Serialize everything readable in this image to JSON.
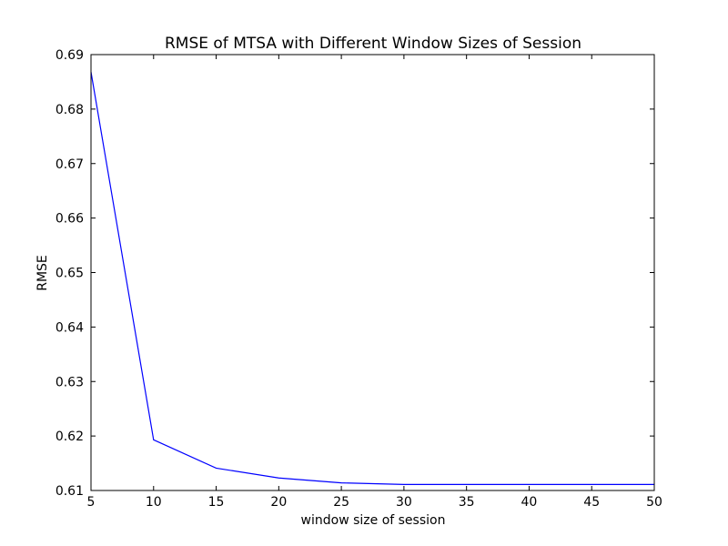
{
  "chart_data": {
    "type": "line",
    "title": "RMSE of MTSA with Different Window Sizes of Session",
    "xlabel": "window size of session",
    "ylabel": "RMSE",
    "xlim": [
      5,
      50
    ],
    "ylim": [
      0.61,
      0.69
    ],
    "xticks": [
      5,
      10,
      15,
      20,
      25,
      30,
      35,
      40,
      45,
      50
    ],
    "yticks": [
      0.61,
      0.62,
      0.63,
      0.64,
      0.65,
      0.66,
      0.67,
      0.68,
      0.69
    ],
    "grid": false,
    "series": [
      {
        "color": "#0000ff",
        "x": [
          5,
          10,
          15,
          20,
          25,
          30,
          35,
          40,
          45,
          50
        ],
        "y": [
          0.6868,
          0.6193,
          0.6141,
          0.6123,
          0.6114,
          0.6111,
          0.6111,
          0.6111,
          0.6111,
          0.6111
        ]
      }
    ]
  }
}
